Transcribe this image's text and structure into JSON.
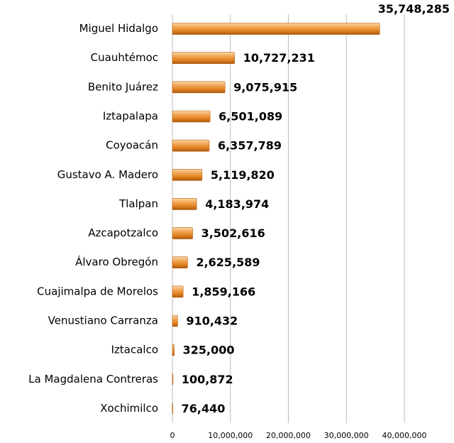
{
  "chart_data": {
    "type": "bar",
    "orientation": "horizontal",
    "categories": [
      "Miguel Hidalgo",
      "Cuauhtémoc",
      "Benito Juárez",
      "Iztapalapa",
      "Coyoacán",
      "Gustavo A. Madero",
      "Tlalpan",
      "Azcapotzalco",
      "Álvaro Obregón",
      "Cuajimalpa de Morelos",
      "Venustiano Carranza",
      "Iztacalco",
      "La Magdalena Contreras",
      "Xochimilco"
    ],
    "values": [
      35748285,
      10727231,
      9075915,
      6501089,
      6357789,
      5119820,
      4183974,
      3502616,
      2625589,
      1859166,
      910432,
      325000,
      100872,
      76440
    ],
    "value_labels": [
      "35,748,285",
      "10,727,231",
      "9,075,915",
      "6,501,089",
      "6,357,789",
      "5,119,820",
      "4,183,974",
      "3,502,616",
      "2,625,589",
      "1,859,166",
      "910,432",
      "325,000",
      "100,872",
      "76,440"
    ],
    "color": "#e8892c",
    "xlim": [
      0,
      40000000
    ],
    "xticks": [
      0,
      {
        "value": 10000000,
        "label": "10,000,000"
      },
      {
        "value": 20000000,
        "label": "20,000,000"
      },
      {
        "value": 30000000,
        "label": "30,000,000"
      },
      {
        "value": 40000000,
        "label": "40,000,000"
      }
    ],
    "grid": true
  }
}
